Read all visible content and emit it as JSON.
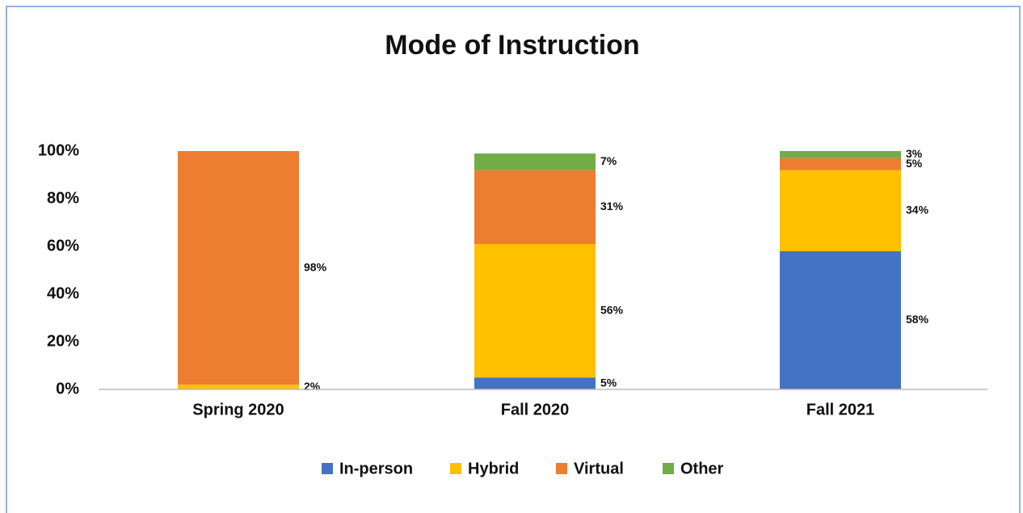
{
  "chart_data": {
    "type": "stacked_bar",
    "title": "Mode of Instruction",
    "categories": [
      "Spring 2020",
      "Fall 2020",
      "Fall 2021"
    ],
    "series": [
      {
        "name": "In-person",
        "color": "#4472c4",
        "values": [
          null,
          5,
          58
        ],
        "value_labels": [
          null,
          "5%",
          "58%"
        ]
      },
      {
        "name": "Hybrid",
        "color": "#ffc000",
        "values": [
          2,
          56,
          34
        ],
        "value_labels": [
          "2%",
          "56%",
          "34%"
        ]
      },
      {
        "name": "Virtual",
        "color": "#ed7d31",
        "values": [
          98,
          31,
          5
        ],
        "value_labels": [
          "98%",
          "31%",
          "5%"
        ]
      },
      {
        "name": "Other",
        "color": "#70ad47",
        "values": [
          null,
          7,
          3
        ],
        "value_labels": [
          null,
          "7%",
          "3%"
        ]
      }
    ],
    "ylim": [
      0,
      100
    ],
    "yticks": [
      {
        "value": 0,
        "label": "0%"
      },
      {
        "value": 20,
        "label": "20%"
      },
      {
        "value": 40,
        "label": "40%"
      },
      {
        "value": 60,
        "label": "60%"
      },
      {
        "value": 80,
        "label": "80%"
      },
      {
        "value": 100,
        "label": "100%"
      }
    ],
    "grid": false,
    "legend": "bottom"
  }
}
